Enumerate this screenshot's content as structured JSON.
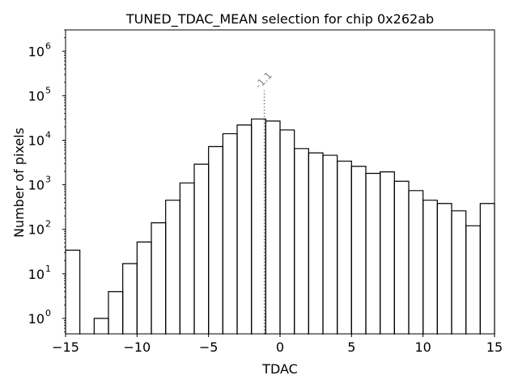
{
  "chart_data": {
    "type": "histogram",
    "title": "TUNED_TDAC_MEAN selection for chip 0x262ab",
    "xlabel": "TDAC",
    "ylabel": "Number of pixels",
    "xlim": [
      -15,
      15
    ],
    "ylim": [
      0.45,
      3000000
    ],
    "yscale": "log",
    "grid": false,
    "bin_edges": [
      -15,
      -14,
      -13,
      -12,
      -11,
      -10,
      -9,
      -8,
      -7,
      -6,
      -5,
      -4,
      -3,
      -2,
      -1,
      0,
      1,
      2,
      3,
      4,
      5,
      6,
      7,
      8,
      9,
      10,
      11,
      12,
      13,
      14,
      15
    ],
    "counts": [
      34,
      0,
      1,
      4,
      17,
      52,
      140,
      450,
      1100,
      2900,
      7200,
      14000,
      22000,
      30000,
      27000,
      17000,
      6500,
      5200,
      4600,
      3400,
      2600,
      1800,
      1950,
      1200,
      740,
      450,
      380,
      260,
      120,
      380
    ],
    "x_ticks": [
      {
        "value": -15,
        "label": "−15"
      },
      {
        "value": -10,
        "label": "−10"
      },
      {
        "value": -5,
        "label": "−5"
      },
      {
        "value": 0,
        "label": "0"
      },
      {
        "value": 5,
        "label": "5"
      },
      {
        "value": 10,
        "label": "10"
      },
      {
        "value": 15,
        "label": "15"
      }
    ],
    "y_ticks": [
      {
        "value": 1,
        "base": "10",
        "exp": "0"
      },
      {
        "value": 10,
        "base": "10",
        "exp": "1"
      },
      {
        "value": 100,
        "base": "10",
        "exp": "2"
      },
      {
        "value": 1000,
        "base": "10",
        "exp": "3"
      },
      {
        "value": 10000,
        "base": "10",
        "exp": "4"
      },
      {
        "value": 100000,
        "base": "10",
        "exp": "5"
      },
      {
        "value": 1000000,
        "base": "10",
        "exp": "6"
      }
    ],
    "annotation": {
      "x": -1.1,
      "label": "-1.1",
      "line_top": 130000,
      "color": "#808080",
      "style": "dotted"
    },
    "colors": {
      "histogram": "#000000",
      "annotation": "#808080"
    }
  }
}
